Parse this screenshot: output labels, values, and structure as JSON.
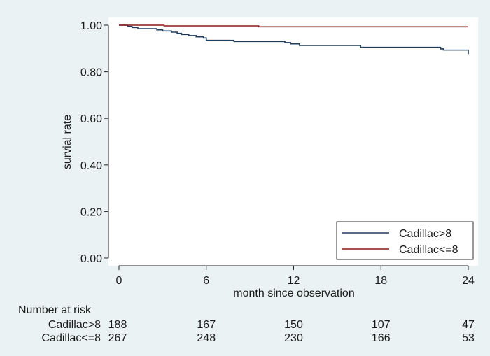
{
  "chart_data": {
    "type": "line",
    "subtype": "kaplan-meier step curve",
    "xlabel": "month since observation",
    "ylabel": "survial rate",
    "xlim": [
      0,
      24
    ],
    "ylim": [
      0,
      1
    ],
    "x_ticks": [
      0,
      6,
      12,
      18,
      24
    ],
    "y_ticks": [
      0.0,
      0.2,
      0.4,
      0.6,
      0.8,
      1.0
    ],
    "y_tick_labels": [
      "0.00",
      "0.20",
      "0.40",
      "0.60",
      "0.80",
      "1.00"
    ],
    "grid": false,
    "legend_position": "bottom-right",
    "series": [
      {
        "name": "Cadillac>8",
        "color": "#1f3d5c",
        "points": [
          [
            0,
            1.0
          ],
          [
            0.6,
            0.995
          ],
          [
            0.9,
            0.99
          ],
          [
            1.3,
            0.985
          ],
          [
            2.6,
            0.98
          ],
          [
            3.0,
            0.975
          ],
          [
            3.6,
            0.97
          ],
          [
            4.0,
            0.965
          ],
          [
            4.3,
            0.96
          ],
          [
            4.8,
            0.955
          ],
          [
            5.3,
            0.95
          ],
          [
            5.8,
            0.945
          ],
          [
            6.0,
            0.935
          ],
          [
            7.9,
            0.93
          ],
          [
            11.4,
            0.925
          ],
          [
            11.8,
            0.92
          ],
          [
            12.4,
            0.913
          ],
          [
            16.6,
            0.905
          ],
          [
            22.1,
            0.898
          ],
          [
            22.3,
            0.893
          ],
          [
            23.9,
            0.893
          ],
          [
            24.0,
            0.876
          ]
        ]
      },
      {
        "name": "Cadillac<=8",
        "color": "#8b1a1a",
        "points": [
          [
            0,
            1.0
          ],
          [
            3.1,
            1.0
          ],
          [
            3.1,
            0.997
          ],
          [
            9.6,
            0.997
          ],
          [
            9.6,
            0.993
          ],
          [
            24.0,
            0.993
          ]
        ]
      }
    ],
    "risk_table": {
      "title": "Number at risk",
      "times": [
        0,
        6,
        12,
        18,
        24
      ],
      "rows": [
        {
          "label": "Cadillac>8",
          "values": [
            188,
            167,
            150,
            107,
            47
          ]
        },
        {
          "label": "Cadillac<=8",
          "values": [
            267,
            248,
            230,
            166,
            53
          ]
        }
      ]
    }
  }
}
